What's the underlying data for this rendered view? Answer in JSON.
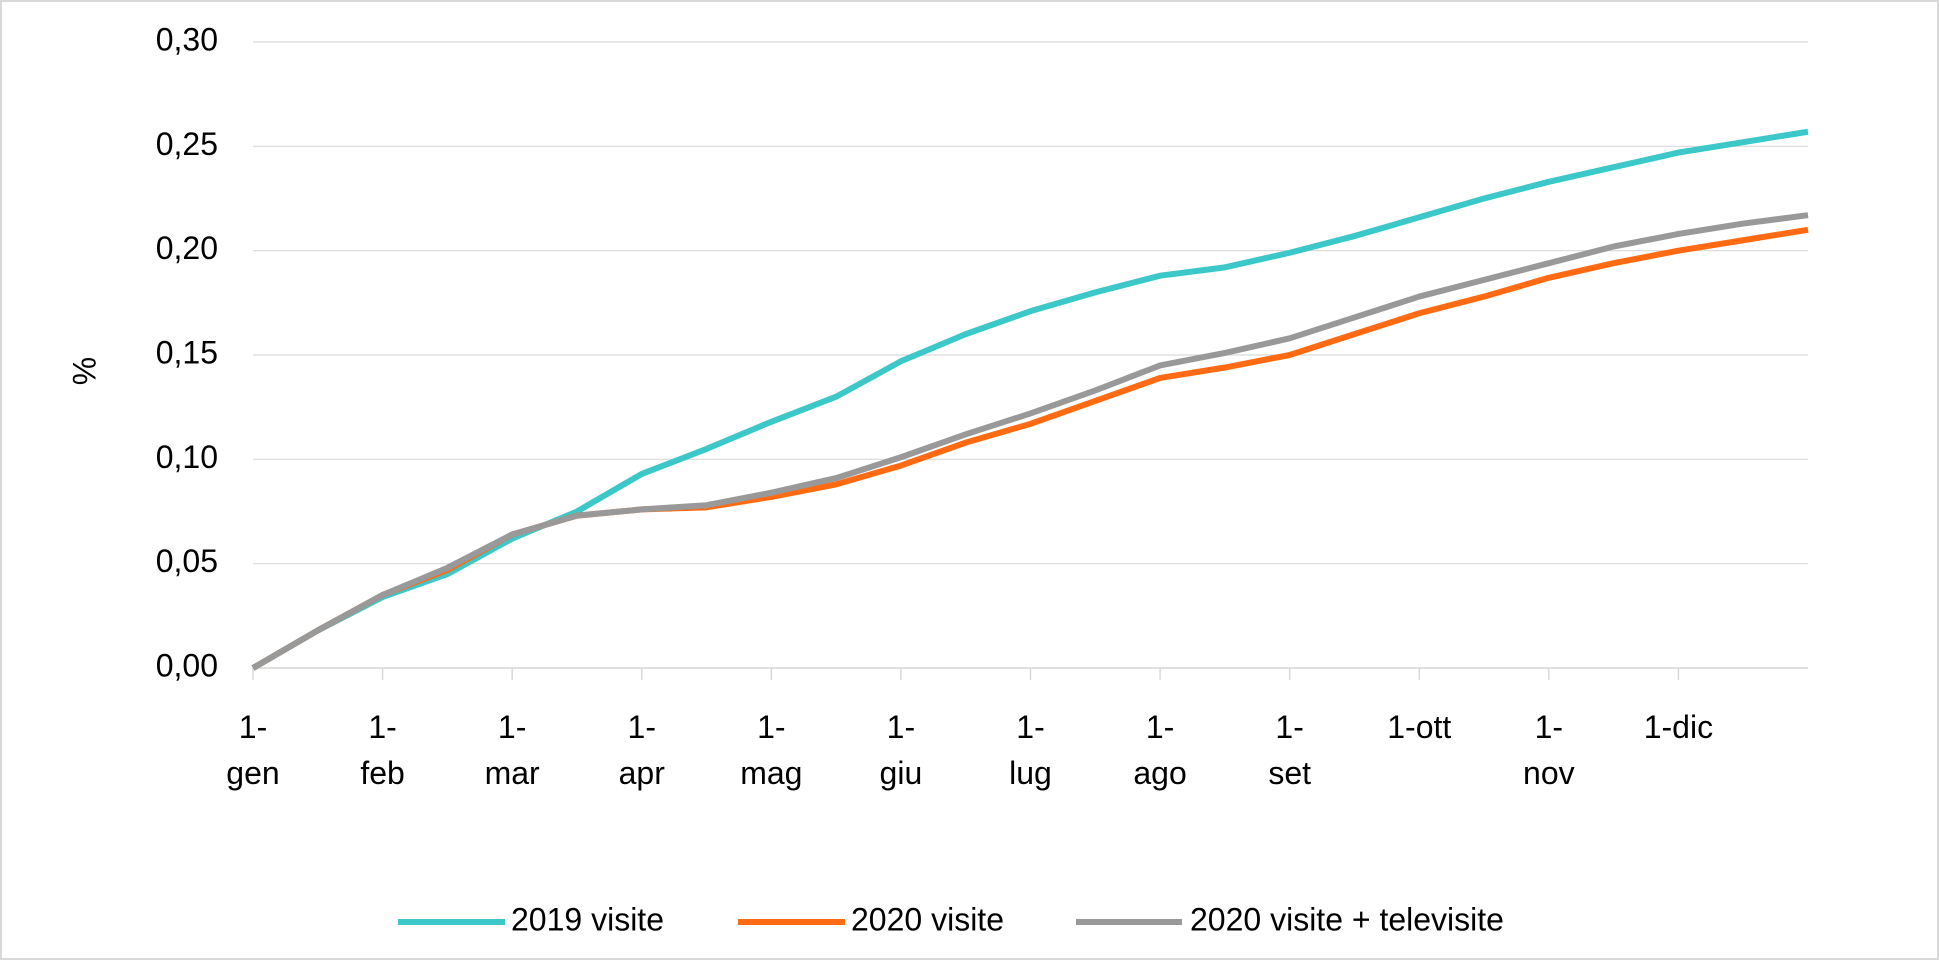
{
  "chart_data": {
    "type": "line",
    "y_label": "%",
    "categories": [
      "1-gen",
      null,
      "1-feb",
      null,
      "1-mar",
      null,
      "1-apr",
      null,
      "1-mag",
      null,
      "1-giu",
      null,
      "1-lug",
      null,
      "1-ago",
      null,
      "1-set",
      null,
      "1-ott",
      null,
      "1-nov",
      null,
      "1-dic",
      null,
      null
    ],
    "series": [
      {
        "name": "2019 visite",
        "color": "#3cc8c8",
        "values": [
          0,
          0.018,
          0.034,
          0.045,
          0.062,
          0.075,
          0.093,
          0.105,
          0.118,
          0.13,
          0.147,
          0.16,
          0.171,
          0.18,
          0.188,
          0.192,
          0.199,
          0.207,
          0.216,
          0.225,
          0.233,
          0.24,
          0.247,
          0.252,
          0.257
        ]
      },
      {
        "name": "2020 visite",
        "color": "#ff6a13",
        "values": [
          0,
          0.018,
          0.035,
          0.047,
          0.064,
          0.073,
          0.076,
          0.077,
          0.082,
          0.088,
          0.097,
          0.108,
          0.117,
          0.128,
          0.139,
          0.144,
          0.15,
          0.16,
          0.17,
          0.178,
          0.187,
          0.194,
          0.2,
          0.205,
          0.21
        ]
      },
      {
        "name": "2020 visite + televisite",
        "color": "#999999",
        "values": [
          0,
          0.018,
          0.035,
          0.048,
          0.064,
          0.073,
          0.076,
          0.078,
          0.084,
          0.091,
          0.101,
          0.112,
          0.122,
          0.133,
          0.145,
          0.151,
          0.158,
          0.168,
          0.178,
          0.186,
          0.194,
          0.202,
          0.208,
          0.213,
          0.217
        ]
      }
    ],
    "ylim": [
      0,
      0.3
    ],
    "yticks": [
      {
        "value": 0,
        "label": "0,00"
      },
      {
        "value": 0.05,
        "label": "0,05"
      },
      {
        "value": 0.1,
        "label": "0,10"
      },
      {
        "value": 0.15,
        "label": "0,15"
      },
      {
        "value": 0.2,
        "label": "0,20"
      },
      {
        "value": 0.25,
        "label": "0,25"
      },
      {
        "value": 0.3,
        "label": "0,30"
      }
    ],
    "grid": true,
    "legend": "bottom"
  }
}
